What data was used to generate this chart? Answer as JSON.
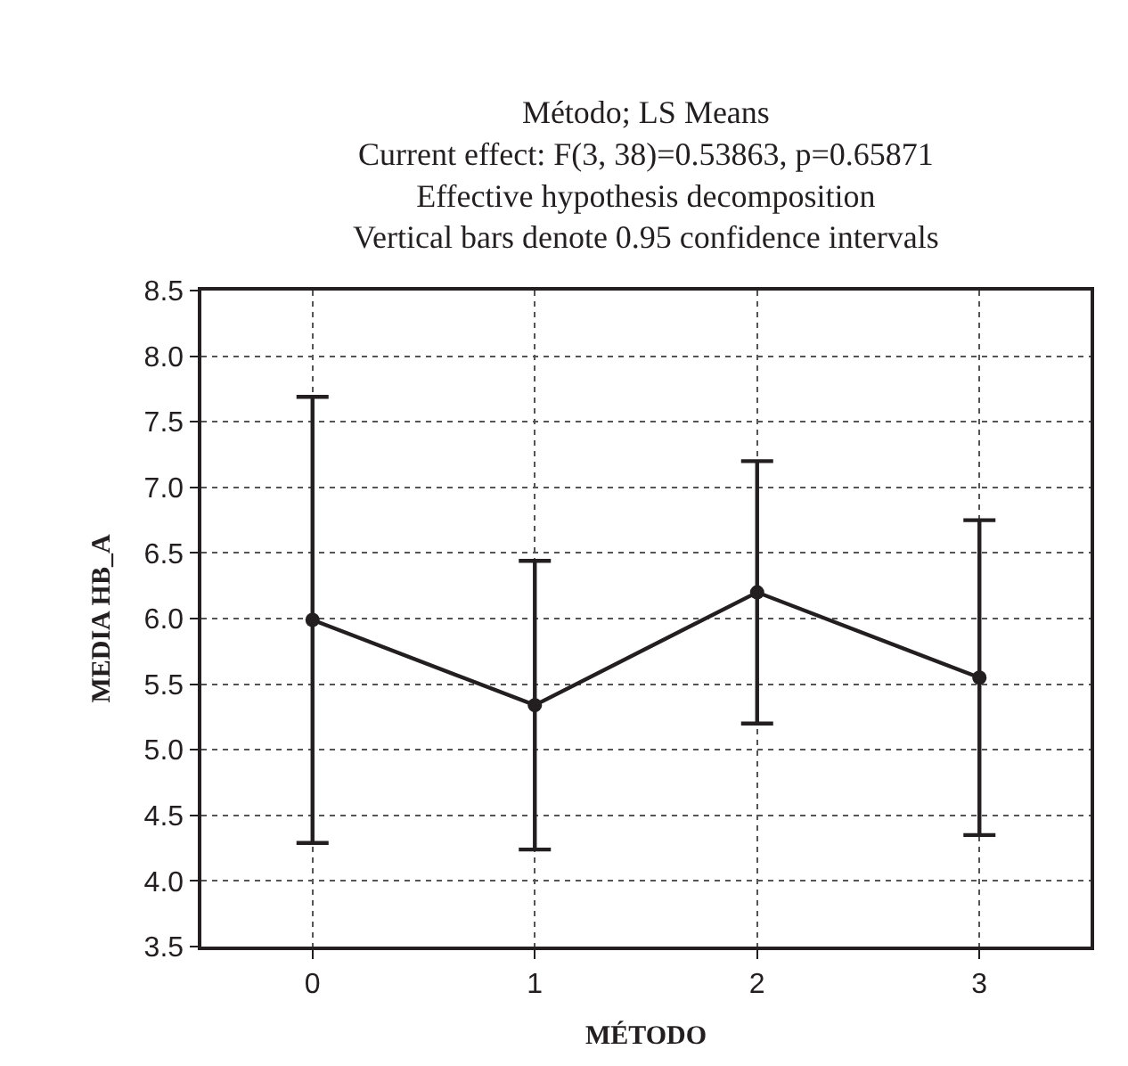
{
  "chart_data": {
    "type": "line",
    "title": "Método; LS Means",
    "subtitle": "Current effect: F(3, 38)=0.53863, p=0.65871\nEffective hypothesis decomposition\nVertical bars denote 0.95 confidence intervals",
    "xlabel": "MÉTODO",
    "ylabel": "MEDIA HB_A",
    "categories": [
      "0",
      "1",
      "2",
      "3"
    ],
    "series": [
      {
        "color": "#231f20",
        "values": [
          5.99,
          5.34,
          6.2,
          5.55
        ],
        "errors": [
          1.7,
          1.1,
          1.0,
          1.2
        ]
      }
    ],
    "ylim": [
      3.5,
      8.5
    ],
    "yticks": [
      {
        "value": 3.5,
        "label": "3.5"
      },
      {
        "value": 4,
        "label": "4.0"
      },
      {
        "value": 4.5,
        "label": "4.5"
      },
      {
        "value": 5,
        "label": "5.0"
      },
      {
        "value": 5.5,
        "label": "5.5"
      },
      {
        "value": 6,
        "label": "6.0"
      },
      {
        "value": 6.5,
        "label": "6.5"
      },
      {
        "value": 7,
        "label": "7.0"
      },
      {
        "value": 7.5,
        "label": "7.5"
      },
      {
        "value": 8,
        "label": "8.0"
      },
      {
        "value": 8.5,
        "label": "8.5"
      }
    ],
    "grid": true,
    "marker": "circle",
    "line_style": "solid"
  }
}
